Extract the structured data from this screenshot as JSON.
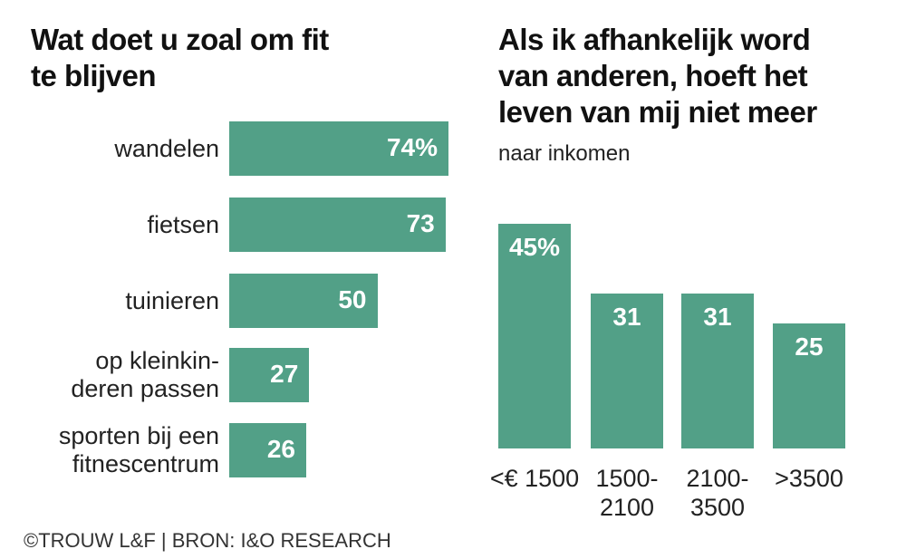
{
  "chart_data": [
    {
      "type": "bar",
      "orientation": "horizontal",
      "title": "Wat doet u zoal om fit te blijven",
      "categories": [
        "wandelen",
        "fietsen",
        "tuinieren",
        "op kleinkinderen passen",
        "sporten bij een fitnescentrum"
      ],
      "category_lines": [
        [
          "wandelen"
        ],
        [
          "fietsen"
        ],
        [
          "tuinieren"
        ],
        [
          "op kleinkin-",
          "deren passen"
        ],
        [
          "sporten bij een",
          "fitnescentrum"
        ]
      ],
      "values": [
        74,
        73,
        50,
        27,
        26
      ],
      "labels": [
        "74%",
        "73",
        "50",
        "27",
        "26"
      ],
      "xlim": [
        0,
        74
      ]
    },
    {
      "type": "bar",
      "orientation": "vertical",
      "title": "Als ik afhankelijk word van anderen, hoeft het leven van mij niet meer",
      "subtitle": "naar inkomen",
      "categories": [
        "<€ 1500",
        "1500-2100",
        "2100-3500",
        ">3500"
      ],
      "category_lines": [
        [
          "<€ 1500"
        ],
        [
          "1500-",
          "2100"
        ],
        [
          "2100-",
          "3500"
        ],
        [
          ">3500"
        ]
      ],
      "values": [
        45,
        31,
        31,
        25
      ],
      "labels": [
        "45%",
        "31",
        "31",
        "25"
      ],
      "ylim": [
        0,
        45
      ]
    }
  ],
  "titles": {
    "left_1": "Wat doet u zoal om fit",
    "left_2": "te blijven",
    "right_1": "Als ik afhankelijk word",
    "right_2": "van anderen, hoeft het",
    "right_3": "leven van mij niet meer",
    "right_sub": "naar inkomen"
  },
  "source": "©TROUW L&F | BRON: I&O RESEARCH",
  "colors": {
    "bar": "#52a087"
  }
}
